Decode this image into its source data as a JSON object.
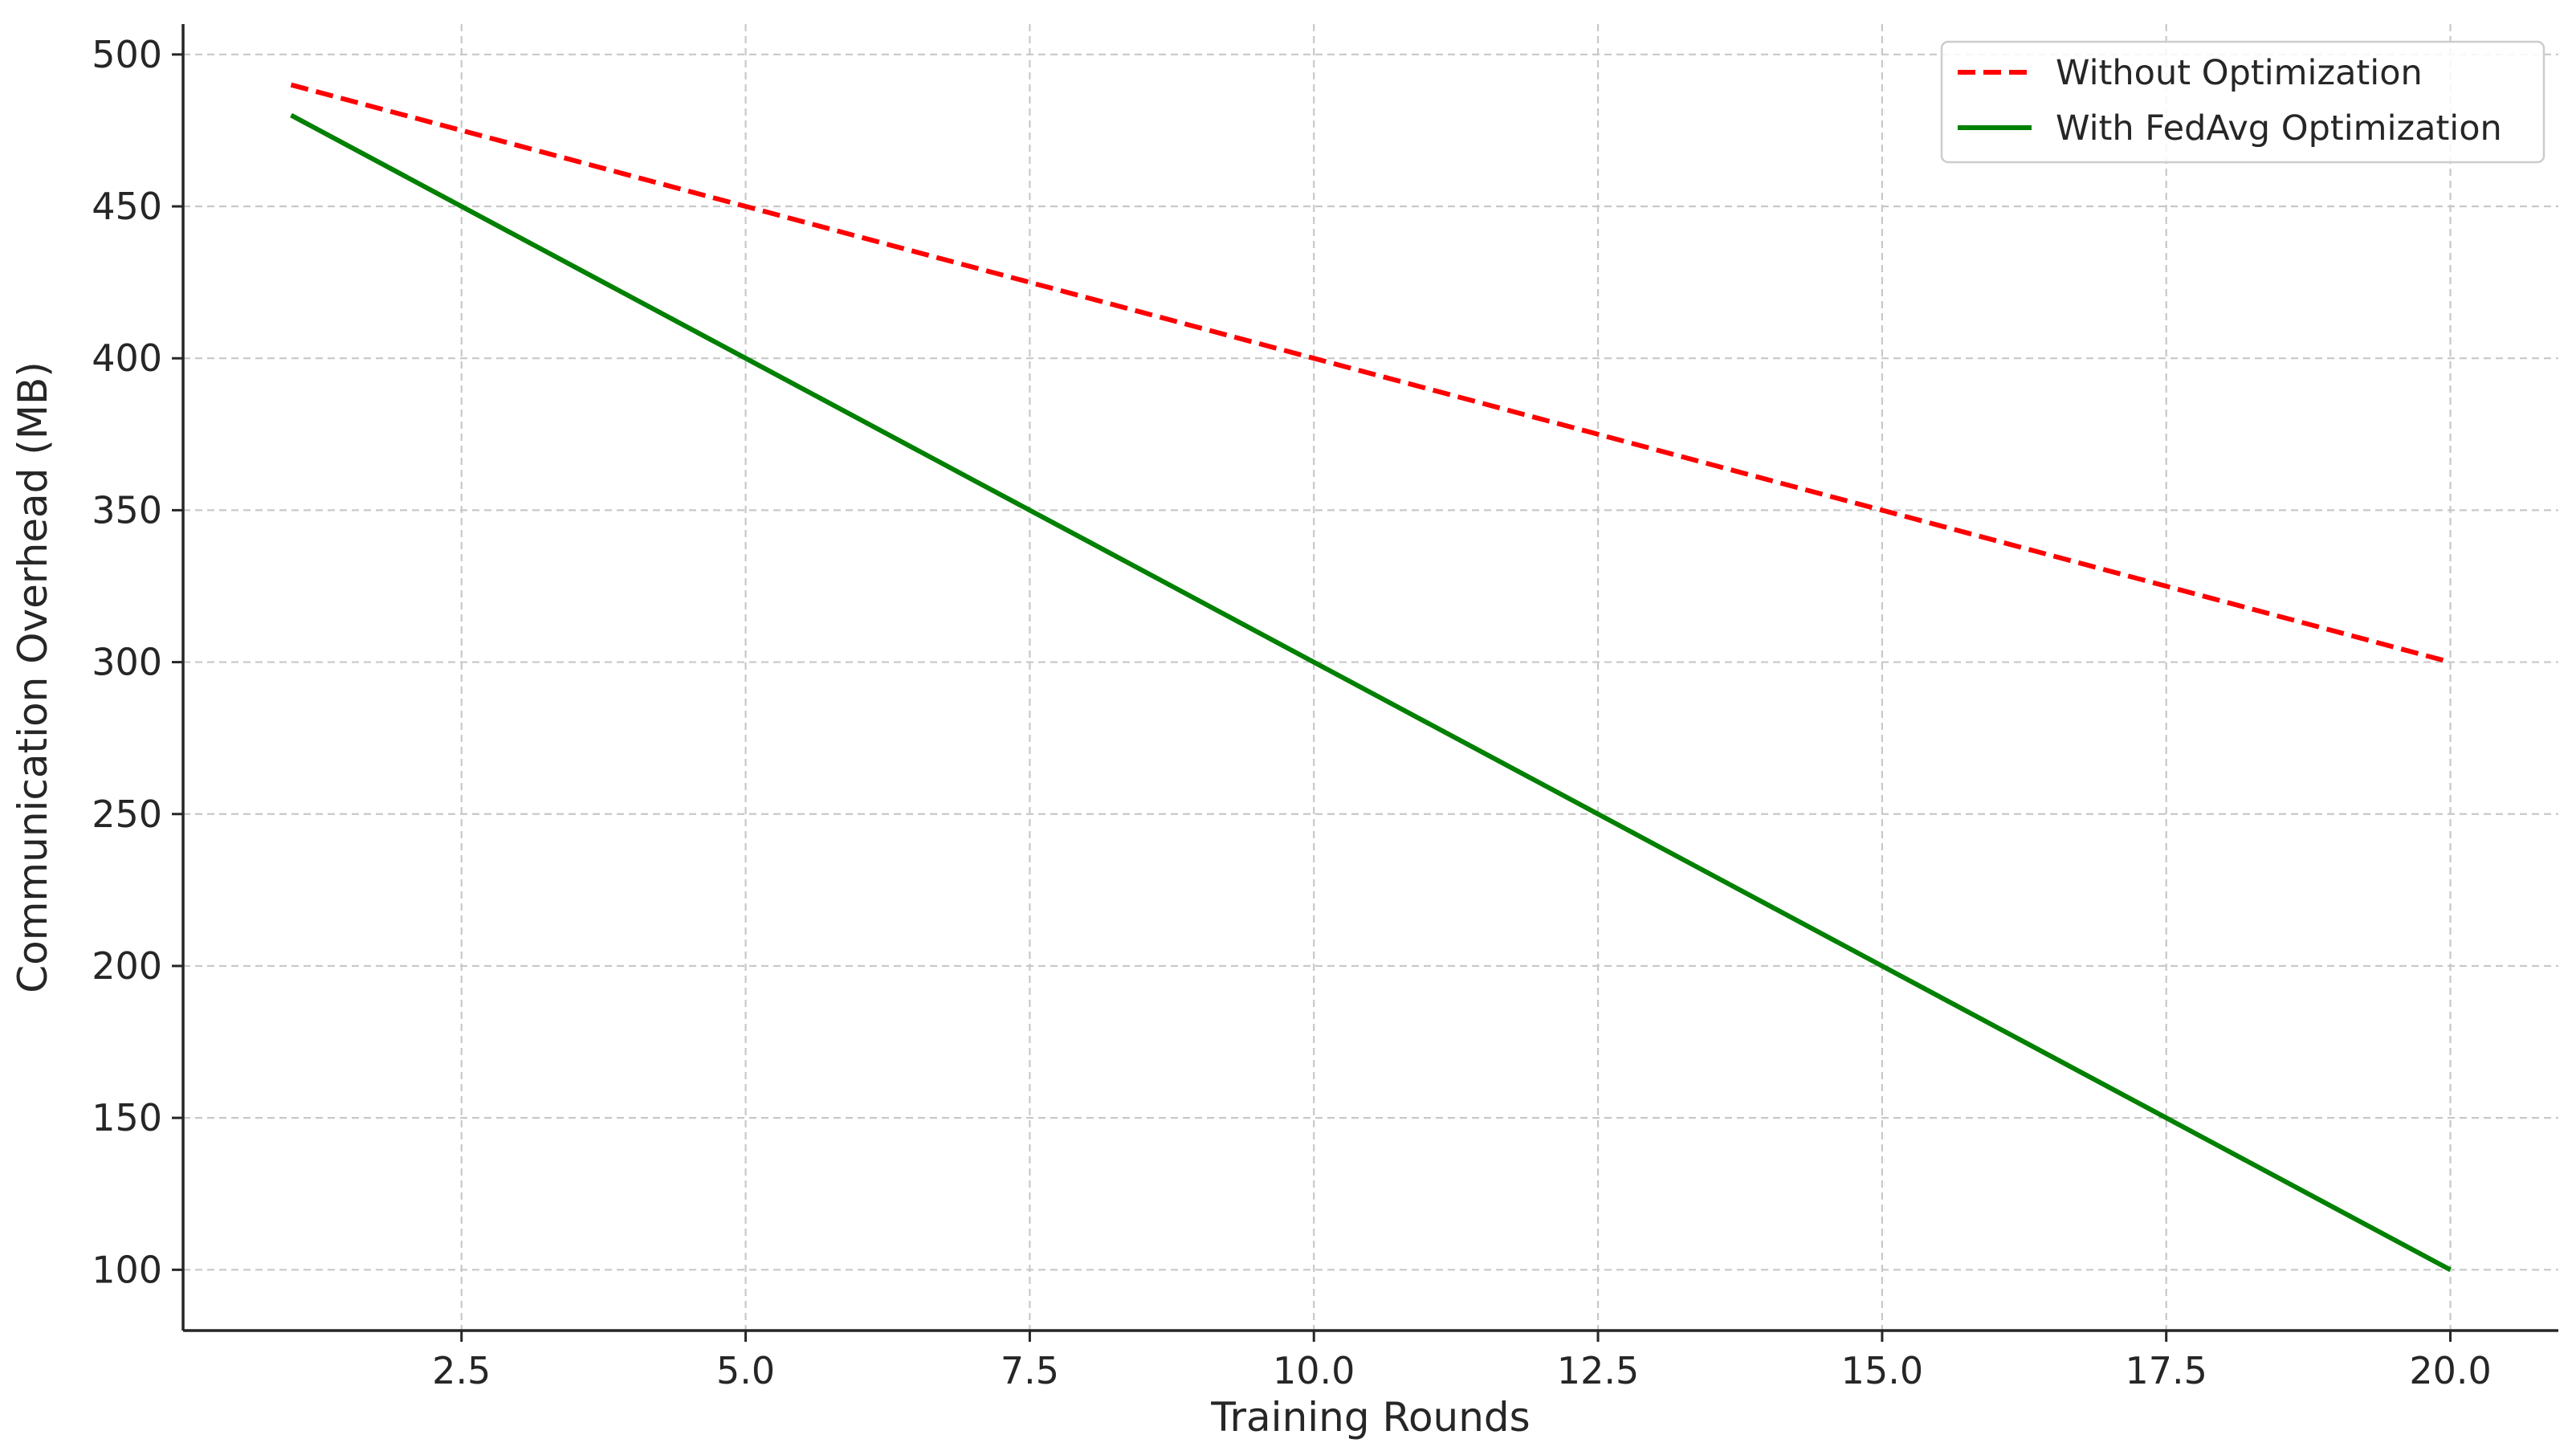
{
  "chart_data": {
    "type": "line",
    "title": "",
    "xlabel": "Training Rounds",
    "ylabel": "Communication Overhead (MB)",
    "xlim": [
      0.05,
      20.95
    ],
    "ylim": [
      80,
      510
    ],
    "x_ticks": [
      2.5,
      5.0,
      7.5,
      10.0,
      12.5,
      15.0,
      17.5,
      20.0
    ],
    "x_tick_labels": [
      "2.5",
      "5.0",
      "7.5",
      "10.0",
      "12.5",
      "15.0",
      "17.5",
      "20.0"
    ],
    "y_ticks": [
      100,
      150,
      200,
      250,
      300,
      350,
      400,
      450,
      500
    ],
    "y_tick_labels": [
      "100",
      "150",
      "200",
      "250",
      "300",
      "350",
      "400",
      "450",
      "500"
    ],
    "grid": true,
    "legend_position": "top-right",
    "x": [
      1,
      2,
      3,
      4,
      5,
      6,
      7,
      8,
      9,
      10,
      11,
      12,
      13,
      14,
      15,
      16,
      17,
      18,
      19,
      20
    ],
    "series": [
      {
        "name": "Without Optimization",
        "color": "#ff0000",
        "style": "dashed",
        "values": [
          490,
          480,
          470,
          460,
          450,
          440,
          430,
          420,
          410,
          400,
          390,
          380,
          370,
          360,
          350,
          340,
          330,
          320,
          310,
          300
        ]
      },
      {
        "name": "With FedAvg Optimization",
        "color": "#008000",
        "style": "solid",
        "values": [
          480,
          460,
          440,
          420,
          400,
          380,
          360,
          340,
          320,
          300,
          280,
          260,
          240,
          220,
          200,
          180,
          160,
          140,
          120,
          100
        ]
      }
    ]
  }
}
